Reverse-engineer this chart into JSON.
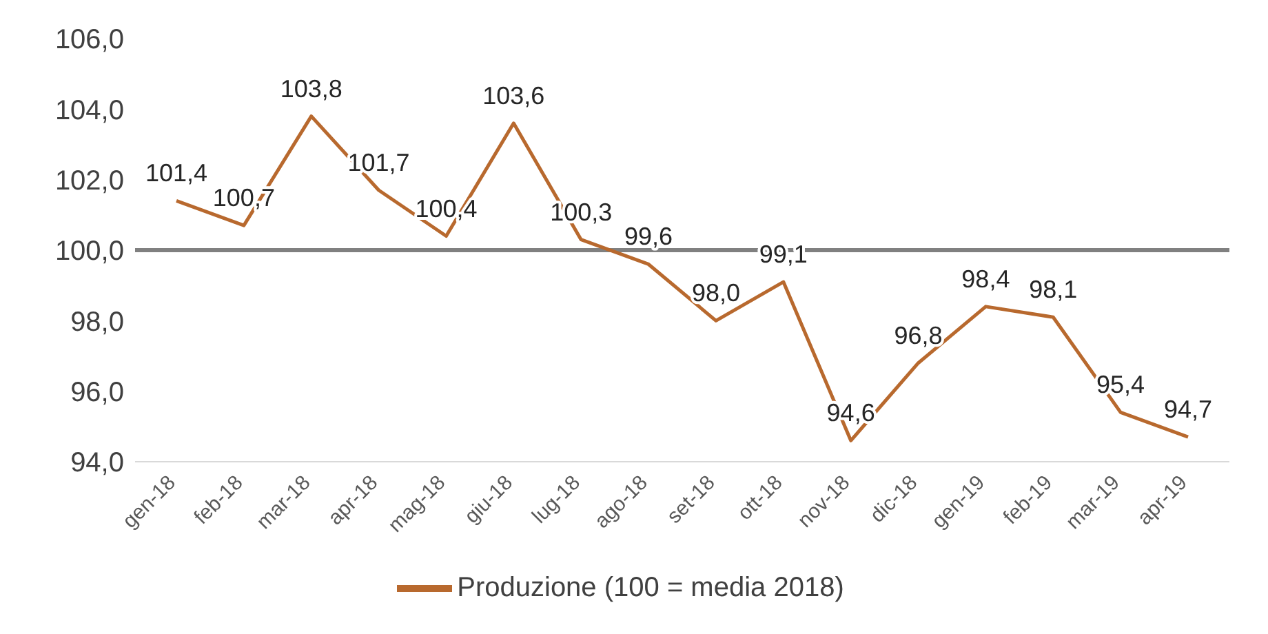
{
  "chart_data": {
    "type": "line",
    "categories": [
      "gen-18",
      "feb-18",
      "mar-18",
      "apr-18",
      "mag-18",
      "giu-18",
      "lug-18",
      "ago-18",
      "set-18",
      "ott-18",
      "nov-18",
      "dic-18",
      "gen-19",
      "feb-19",
      "mar-19",
      "apr-19"
    ],
    "series": [
      {
        "name": "Produzione (100 = media 2018)",
        "color": "#b8692e",
        "values": [
          101.4,
          100.7,
          103.8,
          101.7,
          100.4,
          103.6,
          100.3,
          99.6,
          98.0,
          99.1,
          94.6,
          96.8,
          98.4,
          98.1,
          95.4,
          94.7
        ],
        "value_labels": [
          "101,4",
          "100,7",
          "103,8",
          "101,7",
          "100,4",
          "103,6",
          "100,3",
          "99,6",
          "98,0",
          "99,1",
          "94,6",
          "96,8",
          "98,4",
          "98,1",
          "95,4",
          "94,7"
        ]
      }
    ],
    "ylim": [
      94,
      106
    ],
    "yticks": [
      {
        "value": 94,
        "label": "94,0"
      },
      {
        "value": 96,
        "label": "96,0"
      },
      {
        "value": 98,
        "label": "98,0"
      },
      {
        "value": 100,
        "label": "100,0"
      },
      {
        "value": 102,
        "label": "102,0"
      },
      {
        "value": 104,
        "label": "104,0"
      },
      {
        "value": 106,
        "label": "106,0"
      }
    ],
    "ref_lines": [
      {
        "axis": "y",
        "value": 100,
        "color": "#808080"
      }
    ],
    "grid": false,
    "legend": "bottom",
    "marker": "none",
    "line_style": "solid"
  }
}
